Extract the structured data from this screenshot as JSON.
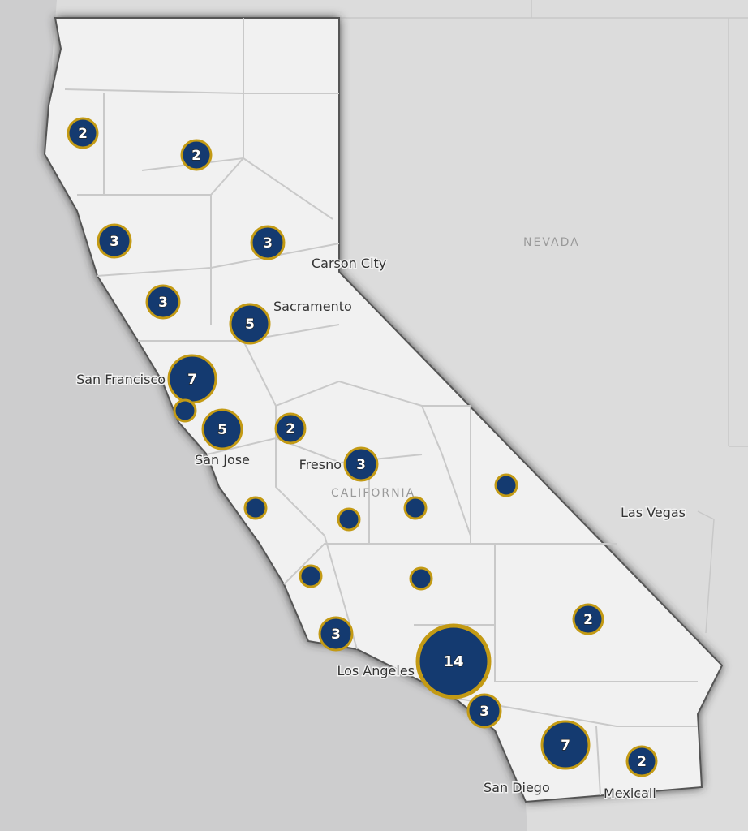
{
  "map": {
    "state_labels": {
      "nevada": "NEVADA",
      "california": "CALIFORNIA"
    },
    "city_labels": {
      "carson_city": "Carson City",
      "sacramento": "Sacramento",
      "san_francisco": "San Francisco",
      "san_jose": "San Jose",
      "fresno": "Fresno",
      "las_vegas": "Las Vegas",
      "los_angeles": "Los Angeles",
      "san_diego": "San Diego",
      "mexicali": "Mexicali"
    },
    "cluster_counts": [
      "2",
      "2",
      "3",
      "3",
      "3",
      "5",
      "7",
      "",
      "5",
      "2",
      "3",
      "",
      "",
      "",
      "",
      "",
      "",
      "3",
      "2",
      "14",
      "3",
      "7",
      "2"
    ],
    "colors": {
      "marker_fill": "#143a70",
      "marker_ring": "#c39a14",
      "land": "#f1f1f1",
      "neighbor": "#dcdcdc",
      "water": "#cdcdce"
    }
  }
}
